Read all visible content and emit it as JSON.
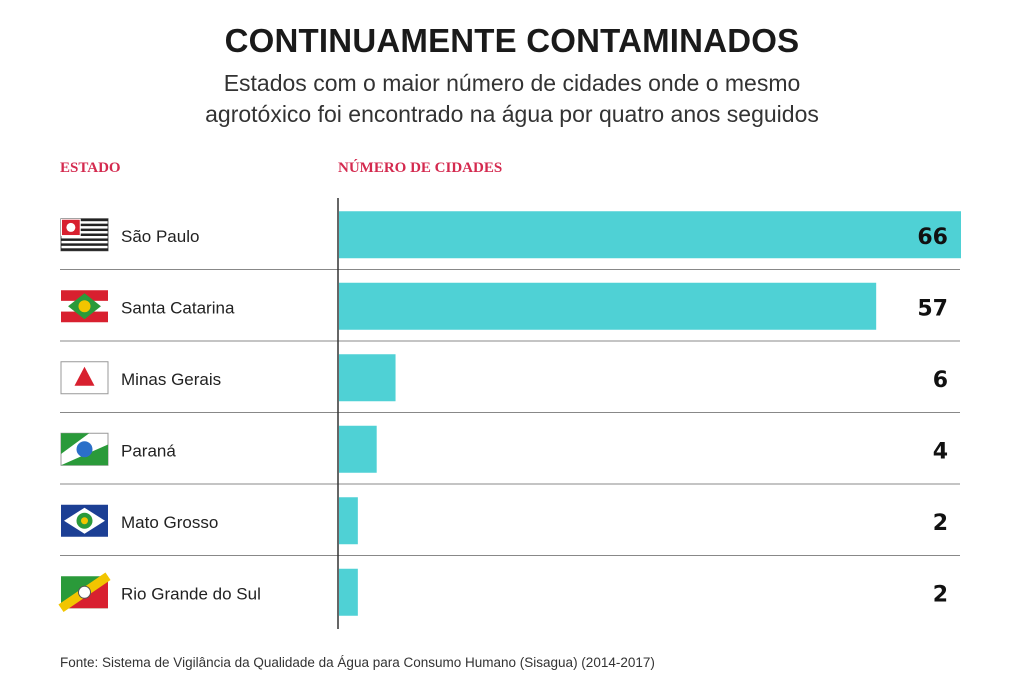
{
  "header": {
    "title": "CONTINUAMENTE CONTAMINADOS",
    "subtitle": "Estados com o maior número de cidades onde o mesmo agrotóxico foi encontrado na água por quatro anos seguidos"
  },
  "columns": {
    "state": "ESTADO",
    "count": "NÚMERO DE CIDADES"
  },
  "source": "Fonte: Sistema de Vigilância da Qualidade da Água para Consumo Humano (Sisagua) (2014-2017)",
  "colors": {
    "bar": "#4fd1d5",
    "header_accent": "#d42a4f",
    "divider": "#888888"
  },
  "chart_data": {
    "type": "bar",
    "orientation": "horizontal",
    "title": "CONTINUAMENTE CONTAMINADOS",
    "subtitle": "Estados com o maior número de cidades onde o mesmo agrotóxico foi encontrado na água por quatro anos seguidos",
    "xlabel": "NÚMERO DE CIDADES",
    "ylabel": "ESTADO",
    "categories": [
      "São Paulo",
      "Santa Catarina",
      "Minas Gerais",
      "Paraná",
      "Mato Grosso",
      "Rio Grande do Sul"
    ],
    "values": [
      66,
      57,
      6,
      4,
      2,
      2
    ],
    "value_labels": [
      "66",
      "57",
      "6",
      "4",
      "2",
      "2"
    ],
    "flags": [
      "sao-paulo-flag-icon",
      "santa-catarina-flag-icon",
      "minas-gerais-flag-icon",
      "parana-flag-icon",
      "mato-grosso-flag-icon",
      "rio-grande-do-sul-flag-icon"
    ],
    "xlim": [
      0,
      66
    ],
    "grid": false,
    "legend": "none"
  }
}
